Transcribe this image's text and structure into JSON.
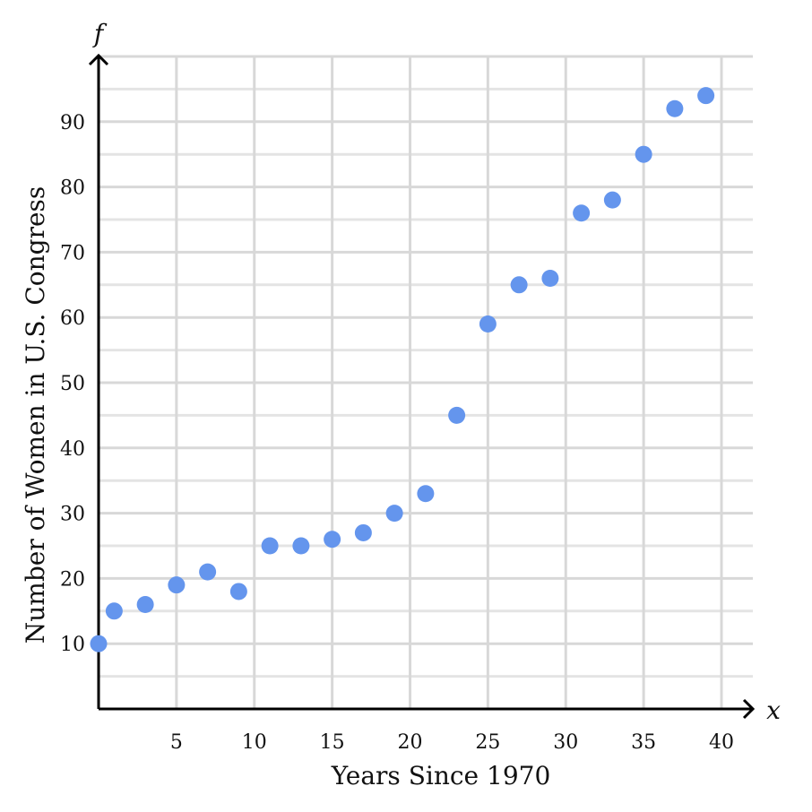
{
  "chart_data": {
    "type": "scatter",
    "xlabel": "Years Since 1970",
    "ylabel": "Number of Women in U.S. Congress",
    "x_var": "x",
    "y_var": "f",
    "xlim": [
      0,
      42
    ],
    "ylim": [
      0,
      100
    ],
    "x_ticks": [
      5,
      10,
      15,
      20,
      25,
      30,
      35,
      40
    ],
    "y_ticks": [
      10,
      20,
      30,
      40,
      50,
      60,
      70,
      80,
      90
    ],
    "grid": true,
    "color": "#6495ed",
    "x": [
      0,
      1,
      3,
      5,
      7,
      9,
      11,
      13,
      15,
      17,
      19,
      21,
      23,
      25,
      27,
      29,
      31,
      33,
      35,
      37,
      39
    ],
    "y": [
      10,
      15,
      16,
      19,
      21,
      18,
      25,
      25,
      26,
      27,
      30,
      33,
      45,
      59,
      65,
      66,
      76,
      78,
      85,
      92,
      94
    ]
  }
}
